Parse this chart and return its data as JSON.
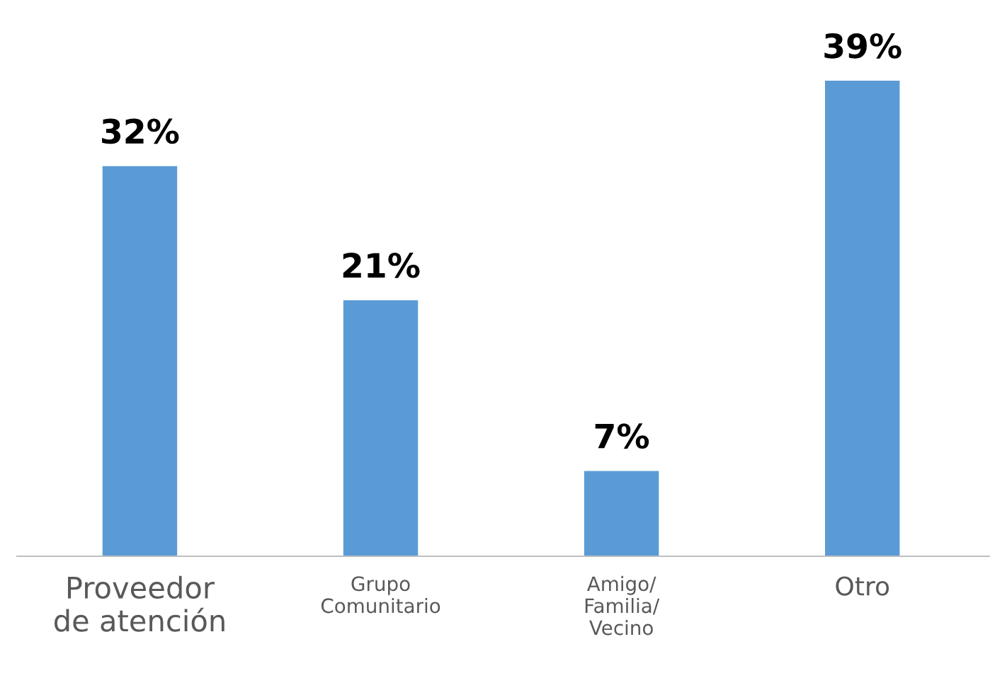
{
  "chart_data": {
    "type": "bar",
    "categories": [
      "Proveedor\nde atención",
      "Grupo\nComunitario",
      "Amigo/\nFamilia/\nVecino",
      "Otro"
    ],
    "values": [
      32,
      21,
      7,
      39
    ],
    "value_labels": [
      "32%",
      "21%",
      "7%",
      "39%"
    ],
    "color": "#5b9bd5",
    "grid": false,
    "legend": false
  }
}
